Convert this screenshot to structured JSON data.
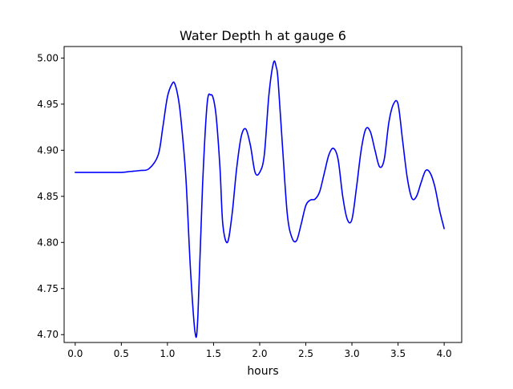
{
  "chart_data": {
    "type": "line",
    "title": "Water Depth h at gauge 6",
    "xlabel": "hours",
    "ylabel": "",
    "xlim": [
      -0.12,
      4.19
    ],
    "ylim": [
      4.6915,
      5.0125
    ],
    "grid": false,
    "x_ticks": [
      0.0,
      0.5,
      1.0,
      1.5,
      2.0,
      2.5,
      3.0,
      3.5,
      4.0
    ],
    "x_tick_labels": [
      "0.0",
      "0.5",
      "1.0",
      "1.5",
      "2.0",
      "2.5",
      "3.0",
      "3.5",
      "4.0"
    ],
    "y_ticks": [
      4.7,
      4.75,
      4.8,
      4.85,
      4.9,
      4.95,
      5.0
    ],
    "y_tick_labels": [
      "4.70",
      "4.75",
      "4.80",
      "4.85",
      "4.90",
      "4.95",
      "5.00"
    ],
    "series": [
      {
        "color": "#0000ff",
        "x": [
          0.0,
          0.3,
          0.5,
          0.6,
          0.7,
          0.8,
          0.9,
          0.95,
          1.0,
          1.05,
          1.08,
          1.12,
          1.15,
          1.2,
          1.25,
          1.3,
          1.33,
          1.38,
          1.43,
          1.47,
          1.5,
          1.53,
          1.57,
          1.6,
          1.65,
          1.7,
          1.75,
          1.8,
          1.85,
          1.9,
          1.95,
          2.0,
          2.05,
          2.1,
          2.15,
          2.18,
          2.2,
          2.25,
          2.3,
          2.35,
          2.4,
          2.45,
          2.5,
          2.55,
          2.6,
          2.65,
          2.7,
          2.75,
          2.8,
          2.85,
          2.9,
          2.95,
          3.0,
          3.05,
          3.1,
          3.15,
          3.2,
          3.25,
          3.3,
          3.35,
          3.4,
          3.45,
          3.5,
          3.55,
          3.6,
          3.65,
          3.7,
          3.75,
          3.8,
          3.85,
          3.9,
          3.95,
          4.0
        ],
        "y": [
          4.876,
          4.876,
          4.876,
          4.877,
          4.878,
          4.88,
          4.895,
          4.925,
          4.958,
          4.972,
          4.972,
          4.955,
          4.93,
          4.87,
          4.77,
          4.702,
          4.72,
          4.86,
          4.95,
          4.96,
          4.955,
          4.935,
          4.88,
          4.82,
          4.8,
          4.83,
          4.88,
          4.915,
          4.923,
          4.905,
          4.876,
          4.876,
          4.895,
          4.96,
          4.995,
          4.99,
          4.975,
          4.9,
          4.83,
          4.805,
          4.802,
          4.82,
          4.84,
          4.846,
          4.847,
          4.855,
          4.875,
          4.895,
          4.902,
          4.89,
          4.85,
          4.825,
          4.825,
          4.86,
          4.9,
          4.923,
          4.92,
          4.9,
          4.882,
          4.89,
          4.93,
          4.95,
          4.95,
          4.91,
          4.87,
          4.848,
          4.85,
          4.865,
          4.878,
          4.875,
          4.86,
          4.835,
          4.815
        ]
      }
    ]
  }
}
